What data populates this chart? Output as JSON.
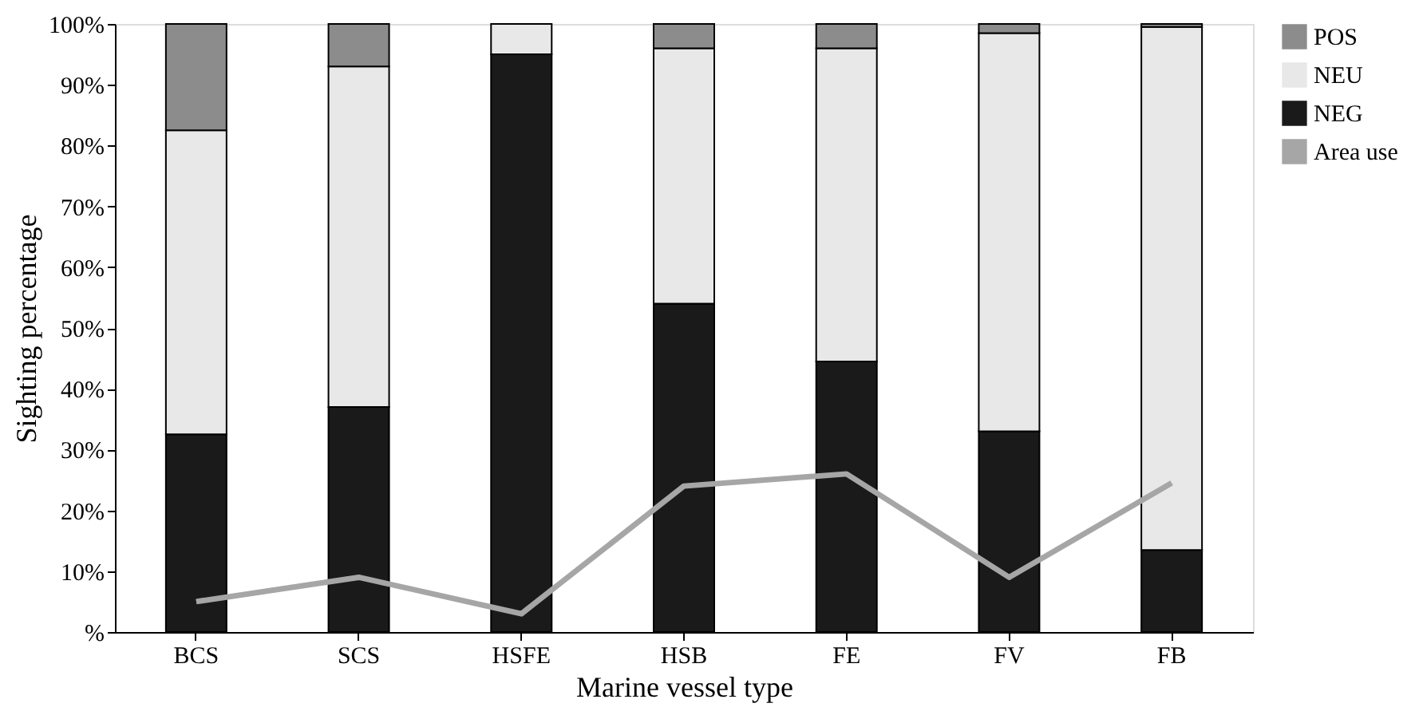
{
  "chart_data": {
    "type": "bar",
    "stacked": true,
    "xlabel": "Marine vessel type",
    "ylabel": "Sighting percentage",
    "categories": [
      "BCS",
      "SCS",
      "HSFE",
      "HSB",
      "FE",
      "FV",
      "FB"
    ],
    "series": [
      {
        "name": "NEG",
        "color": "#1a1a1a",
        "values": [
          32.5,
          37,
          95,
          54,
          44.5,
          33,
          13.5
        ]
      },
      {
        "name": "NEU",
        "color": "#e8e8e8",
        "values": [
          50,
          56,
          5,
          42,
          51.5,
          65.5,
          86
        ]
      },
      {
        "name": "POS",
        "color": "#8c8c8c",
        "values": [
          17.5,
          7,
          0,
          4,
          4,
          1.5,
          0.5
        ]
      },
      {
        "name": "Area use",
        "type": "line",
        "color": "#a6a6a6",
        "values": [
          5,
          9,
          3,
          24,
          26,
          9,
          24.5
        ]
      }
    ],
    "ylim": [
      0,
      100
    ],
    "yticks": [
      {
        "value": 0,
        "label": "%"
      },
      {
        "value": 10,
        "label": "10%"
      },
      {
        "value": 20,
        "label": "20%"
      },
      {
        "value": 30,
        "label": "30%"
      },
      {
        "value": 40,
        "label": "40%"
      },
      {
        "value": 50,
        "label": "50%"
      },
      {
        "value": 60,
        "label": "60%"
      },
      {
        "value": 70,
        "label": "70%"
      },
      {
        "value": 80,
        "label": "80%"
      },
      {
        "value": 90,
        "label": "90%"
      },
      {
        "value": 100,
        "label": "100%"
      }
    ],
    "legend": "right",
    "grid": false
  }
}
